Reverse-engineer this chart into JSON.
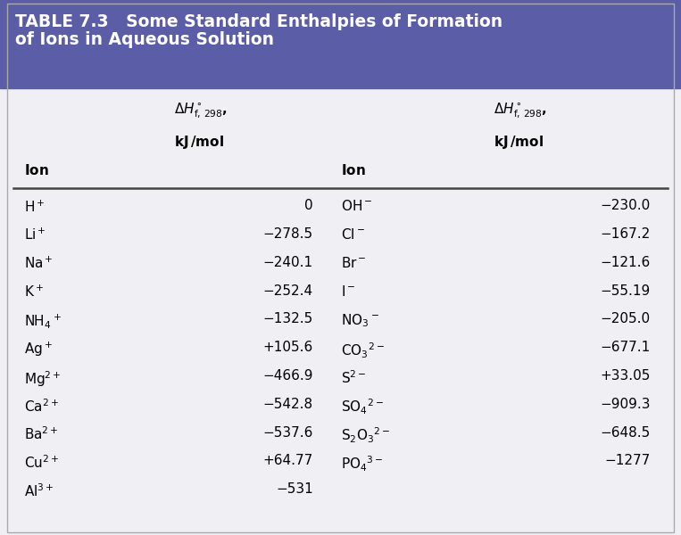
{
  "title_line1": "TABLE 7.3   Some Standard Enthalpies of Formation",
  "title_line2": "of Ions in Aqueous Solution",
  "header_bg": "#5b5ea6",
  "table_bg": "#f0eff4",
  "header_text_color": "#ffffff",
  "col_header_color": "#000000",
  "body_text_color": "#000000",
  "left_ions": [
    "H$^+$",
    "Li$^+$",
    "Na$^+$",
    "K$^+$",
    "NH$_4$$^+$",
    "Ag$^+$",
    "Mg$^{2+}$",
    "Ca$^{2+}$",
    "Ba$^{2+}$",
    "Cu$^{2+}$",
    "Al$^{3+}$"
  ],
  "left_values": [
    "0",
    "−278.5",
    "−240.1",
    "−252.4",
    "−132.5",
    "+105.6",
    "−466.9",
    "−542.8",
    "−537.6",
    "+64.77",
    "−531"
  ],
  "right_ions": [
    "OH$^-$",
    "Cl$^-$",
    "Br$^-$",
    "I$^-$",
    "NO$_3$$^-$",
    "CO$_3$$^{2-}$",
    "S$^{2-}$",
    "SO$_4$$^{2-}$",
    "S$_2$O$_3$$^{2-}$",
    "PO$_4$$^{3-}$"
  ],
  "right_values": [
    "−230.0",
    "−167.2",
    "−121.6",
    "−55.19",
    "−205.0",
    "−677.1",
    "+33.05",
    "−909.3",
    "−648.5",
    "−1277"
  ],
  "title_fontsize": 13.5,
  "col_header_fontsize": 11,
  "body_fontsize": 11
}
